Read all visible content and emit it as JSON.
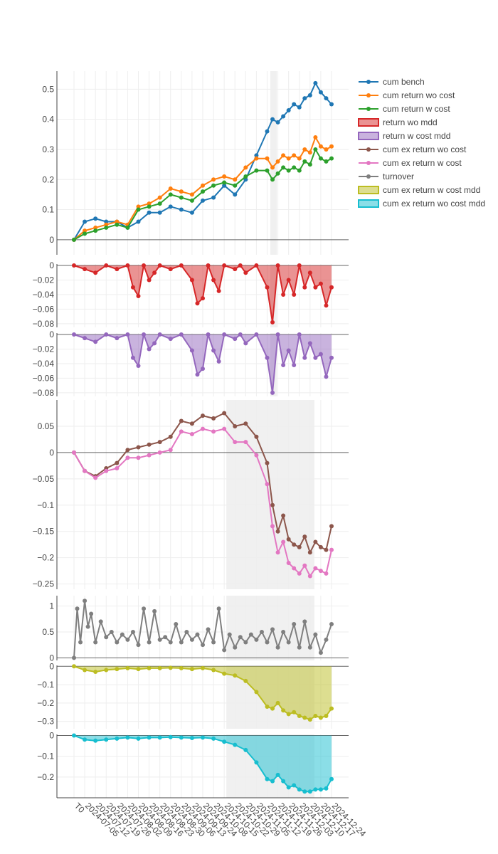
{
  "chart_data": {
    "type": "line",
    "x_categories": [
      "T0",
      "2024-07-05",
      "2024-07-12",
      "2024-07-19",
      "2024-07-26",
      "2024-08-02",
      "2024-08-09",
      "2024-08-16",
      "2024-08-23",
      "2024-08-30",
      "2024-09-06",
      "2024-09-13",
      "2024-09-24",
      "2024-10-08",
      "2024-10-15",
      "2024-10-22",
      "2024-10-29",
      "2024-11-05",
      "2024-11-12",
      "2024-11-19",
      "2024-11-26",
      "2024-12-03",
      "2024-12-10",
      "2024-12-17",
      "2024-12-24"
    ],
    "shaded_ranges": [
      {
        "panels": [
          "p1",
          "p2",
          "p3"
        ],
        "x": [
          18.3,
          18.9
        ]
      },
      {
        "panels": [
          "p4",
          "p5",
          "p6",
          "p7"
        ],
        "x": [
          14.2,
          22.4
        ]
      }
    ],
    "legend": {
      "placement": "right",
      "entries": [
        {
          "label": "cum bench",
          "color": "#1f77b4",
          "style": "line"
        },
        {
          "label": "cum return wo cost",
          "color": "#ff7f0e",
          "style": "line"
        },
        {
          "label": "cum return w cost",
          "color": "#2ca02c",
          "style": "line"
        },
        {
          "label": "return wo mdd",
          "color": "#d62728",
          "style": "fill"
        },
        {
          "label": "return w cost mdd",
          "color": "#9467bd",
          "style": "fill"
        },
        {
          "label": "cum ex return wo cost",
          "color": "#8c564b",
          "style": "line"
        },
        {
          "label": "cum ex return w cost",
          "color": "#e377c2",
          "style": "line"
        },
        {
          "label": "turnover",
          "color": "#7f7f7f",
          "style": "line"
        },
        {
          "label": "cum ex return w cost mdd",
          "color": "#bcbd22",
          "style": "fill"
        },
        {
          "label": "cum ex return wo cost mdd",
          "color": "#17becf",
          "style": "fill"
        }
      ]
    },
    "panels": [
      {
        "id": "p1",
        "ylim": [
          -0.05,
          0.56
        ],
        "yticks": [
          0,
          0.1,
          0.2,
          0.3,
          0.4,
          0.5
        ],
        "ytick_labels": [
          "0",
          "0.1",
          "0.2",
          "0.3",
          "0.4",
          "0.5"
        ],
        "series": [
          {
            "name": "cum bench",
            "color": "#1f77b4",
            "x": [
              0,
              1,
              2,
              3,
              4,
              5,
              6,
              7,
              8,
              9,
              10,
              11,
              12,
              13,
              14,
              15,
              16,
              17,
              18,
              18.5,
              19,
              19.5,
              20,
              20.5,
              21,
              21.5,
              22,
              22.5,
              23,
              23.5,
              24
            ],
            "values": [
              0,
              0.06,
              0.07,
              0.06,
              0.06,
              0.04,
              0.06,
              0.09,
              0.09,
              0.11,
              0.1,
              0.09,
              0.13,
              0.14,
              0.18,
              0.15,
              0.2,
              0.28,
              0.36,
              0.4,
              0.39,
              0.41,
              0.43,
              0.45,
              0.44,
              0.47,
              0.48,
              0.52,
              0.49,
              0.47,
              0.45
            ]
          },
          {
            "name": "cum return wo cost",
            "color": "#ff7f0e",
            "x": [
              0,
              1,
              2,
              3,
              4,
              5,
              6,
              7,
              8,
              9,
              10,
              11,
              12,
              13,
              14,
              15,
              16,
              17,
              18,
              18.5,
              19,
              19.5,
              20,
              20.5,
              21,
              21.5,
              22,
              22.5,
              23,
              23.5,
              24
            ],
            "values": [
              0,
              0.03,
              0.04,
              0.05,
              0.06,
              0.05,
              0.11,
              0.12,
              0.14,
              0.17,
              0.16,
              0.15,
              0.18,
              0.2,
              0.21,
              0.2,
              0.24,
              0.27,
              0.27,
              0.24,
              0.26,
              0.28,
              0.27,
              0.28,
              0.27,
              0.3,
              0.29,
              0.34,
              0.31,
              0.3,
              0.31
            ]
          },
          {
            "name": "cum return w cost",
            "color": "#2ca02c",
            "x": [
              0,
              1,
              2,
              3,
              4,
              5,
              6,
              7,
              8,
              9,
              10,
              11,
              12,
              13,
              14,
              15,
              16,
              17,
              18,
              18.5,
              19,
              19.5,
              20,
              20.5,
              21,
              21.5,
              22,
              22.5,
              23,
              23.5,
              24
            ],
            "values": [
              0,
              0.02,
              0.03,
              0.04,
              0.05,
              0.04,
              0.1,
              0.11,
              0.12,
              0.15,
              0.14,
              0.13,
              0.16,
              0.18,
              0.19,
              0.18,
              0.21,
              0.23,
              0.23,
              0.2,
              0.22,
              0.24,
              0.23,
              0.24,
              0.23,
              0.26,
              0.25,
              0.3,
              0.27,
              0.26,
              0.27
            ]
          }
        ]
      },
      {
        "id": "p2",
        "ylim": [
          -0.085,
          0.002
        ],
        "yticks": [
          0,
          -0.02,
          -0.04,
          -0.06,
          -0.08
        ],
        "ytick_labels": [
          "0",
          "−0.02",
          "−0.04",
          "−0.06",
          "−0.08"
        ],
        "series": [
          {
            "name": "return wo mdd",
            "color": "#d62728",
            "fill": true,
            "x": [
              0,
              1,
              2,
              3,
              4,
              5,
              5.5,
              6,
              6.5,
              7,
              7.5,
              8,
              9,
              10,
              11,
              11.5,
              12,
              12.5,
              13,
              13.5,
              14,
              15,
              15.5,
              16,
              17,
              18,
              18.5,
              19,
              19.5,
              20,
              20.5,
              21,
              21.5,
              22,
              22.5,
              23,
              23.5,
              24
            ],
            "values": [
              0,
              -0.005,
              -0.01,
              0,
              -0.005,
              0,
              -0.03,
              -0.042,
              0,
              -0.02,
              -0.01,
              0,
              -0.005,
              0,
              -0.02,
              -0.052,
              -0.045,
              0,
              -0.02,
              -0.035,
              0,
              -0.005,
              0,
              -0.01,
              0,
              -0.03,
              -0.078,
              0,
              -0.04,
              -0.02,
              -0.04,
              0,
              -0.03,
              -0.01,
              -0.03,
              -0.025,
              -0.055,
              -0.03
            ]
          }
        ]
      },
      {
        "id": "p3",
        "ylim": [
          -0.085,
          0.002
        ],
        "yticks": [
          0,
          -0.02,
          -0.04,
          -0.06,
          -0.08
        ],
        "ytick_labels": [
          "0",
          "−0.02",
          "−0.04",
          "−0.06",
          "−0.08"
        ],
        "series": [
          {
            "name": "return w cost mdd",
            "color": "#9467bd",
            "fill": true,
            "x": [
              0,
              1,
              2,
              3,
              4,
              5,
              5.5,
              6,
              6.5,
              7,
              7.5,
              8,
              9,
              10,
              11,
              11.5,
              12,
              12.5,
              13,
              13.5,
              14,
              15,
              15.5,
              16,
              17,
              18,
              18.5,
              19,
              19.5,
              20,
              20.5,
              21,
              21.5,
              22,
              22.5,
              23,
              23.5,
              24
            ],
            "values": [
              0,
              -0.005,
              -0.01,
              0,
              -0.005,
              0,
              -0.032,
              -0.043,
              0,
              -0.02,
              -0.012,
              0,
              -0.006,
              0,
              -0.022,
              -0.055,
              -0.047,
              0,
              -0.022,
              -0.037,
              0,
              -0.006,
              0,
              -0.012,
              0,
              -0.032,
              -0.08,
              0,
              -0.042,
              -0.022,
              -0.042,
              0,
              -0.032,
              -0.012,
              -0.032,
              -0.027,
              -0.058,
              -0.032
            ]
          }
        ]
      },
      {
        "id": "p4",
        "ylim": [
          -0.26,
          0.1
        ],
        "yticks": [
          0.05,
          0,
          -0.05,
          -0.1,
          -0.15,
          -0.2,
          -0.25
        ],
        "ytick_labels": [
          "0.05",
          "0",
          "−0.05",
          "−0.1",
          "−0.15",
          "−0.2",
          "−0.25"
        ],
        "series": [
          {
            "name": "cum ex return wo cost",
            "color": "#8c564b",
            "x": [
              0,
              1,
              2,
              3,
              4,
              5,
              6,
              7,
              8,
              9,
              10,
              11,
              12,
              13,
              14,
              15,
              16,
              17,
              18,
              18.5,
              19,
              19.5,
              20,
              20.5,
              21,
              21.5,
              22,
              22.5,
              23,
              23.5,
              24
            ],
            "values": [
              0,
              -0.035,
              -0.045,
              -0.03,
              -0.02,
              0.005,
              0.01,
              0.015,
              0.02,
              0.03,
              0.06,
              0.055,
              0.07,
              0.065,
              0.075,
              0.05,
              0.055,
              0.03,
              -0.02,
              -0.1,
              -0.15,
              -0.12,
              -0.165,
              -0.175,
              -0.18,
              -0.16,
              -0.19,
              -0.17,
              -0.18,
              -0.185,
              -0.14
            ]
          },
          {
            "name": "cum ex return w cost",
            "color": "#e377c2",
            "x": [
              0,
              1,
              2,
              3,
              4,
              5,
              6,
              7,
              8,
              9,
              10,
              11,
              12,
              13,
              14,
              15,
              16,
              17,
              18,
              18.5,
              19,
              19.5,
              20,
              20.5,
              21,
              21.5,
              22,
              22.5,
              23,
              23.5,
              24
            ],
            "values": [
              0,
              -0.035,
              -0.048,
              -0.035,
              -0.03,
              -0.01,
              -0.01,
              -0.005,
              0,
              0.005,
              0.04,
              0.035,
              0.045,
              0.04,
              0.045,
              0.02,
              0.02,
              -0.005,
              -0.06,
              -0.14,
              -0.19,
              -0.17,
              -0.21,
              -0.22,
              -0.23,
              -0.215,
              -0.235,
              -0.22,
              -0.225,
              -0.23,
              -0.185
            ]
          }
        ]
      },
      {
        "id": "p5",
        "ylim": [
          -0.05,
          1.2
        ],
        "yticks": [
          0,
          0.5,
          1
        ],
        "ytick_labels": [
          "0",
          "0.5",
          "1"
        ],
        "series": [
          {
            "name": "turnover",
            "color": "#7f7f7f",
            "x": [
              0,
              0.3,
              0.6,
              1,
              1.3,
              1.6,
              2,
              2.5,
              3,
              3.5,
              4,
              4.5,
              5,
              5.5,
              6,
              6.5,
              7,
              7.5,
              8,
              8.5,
              9,
              9.5,
              10,
              10.5,
              11,
              11.5,
              12,
              12.5,
              13,
              13.5,
              14,
              14.5,
              15,
              15.5,
              16,
              16.5,
              17,
              17.5,
              18,
              18.5,
              19,
              19.5,
              20,
              20.5,
              21,
              21.5,
              22,
              22.5,
              23,
              23.5,
              24
            ],
            "values": [
              0,
              0.95,
              0.3,
              1.1,
              0.6,
              0.85,
              0.3,
              0.7,
              0.4,
              0.5,
              0.3,
              0.45,
              0.35,
              0.5,
              0.25,
              0.95,
              0.3,
              0.9,
              0.35,
              0.4,
              0.3,
              0.65,
              0.3,
              0.5,
              0.35,
              0.45,
              0.25,
              0.55,
              0.3,
              0.95,
              0.15,
              0.45,
              0.2,
              0.4,
              0.3,
              0.45,
              0.35,
              0.5,
              0.3,
              0.55,
              0.2,
              0.5,
              0.3,
              0.65,
              0.2,
              0.7,
              0.2,
              0.45,
              0.1,
              0.35,
              0.65
            ]
          }
        ]
      },
      {
        "id": "p6",
        "ylim": [
          -0.34,
          0.005
        ],
        "yticks": [
          0,
          -0.1,
          -0.2,
          -0.3
        ],
        "ytick_labels": [
          "0",
          "−0.1",
          "−0.2",
          "−0.3"
        ],
        "series": [
          {
            "name": "cum ex return w cost mdd",
            "color": "#bcbd22",
            "fill": true,
            "x": [
              0,
              1,
              2,
              3,
              4,
              5,
              6,
              7,
              8,
              9,
              10,
              11,
              12,
              13,
              14,
              15,
              16,
              17,
              18,
              18.5,
              19,
              19.5,
              20,
              20.5,
              21,
              21.5,
              22,
              22.5,
              23,
              23.5,
              24
            ],
            "values": [
              0,
              -0.02,
              -0.03,
              -0.02,
              -0.015,
              -0.01,
              -0.015,
              -0.01,
              -0.01,
              -0.008,
              -0.01,
              -0.015,
              -0.01,
              -0.02,
              -0.04,
              -0.05,
              -0.08,
              -0.14,
              -0.22,
              -0.23,
              -0.2,
              -0.24,
              -0.26,
              -0.25,
              -0.27,
              -0.28,
              -0.29,
              -0.27,
              -0.28,
              -0.27,
              -0.23
            ]
          }
        ]
      },
      {
        "id": "p7",
        "ylim": [
          -0.3,
          0.005
        ],
        "yticks": [
          0,
          -0.1,
          -0.2
        ],
        "ytick_labels": [
          "0",
          "−0.1",
          "−0.2"
        ],
        "series": [
          {
            "name": "cum ex return wo cost mdd",
            "color": "#17becf",
            "fill": true,
            "x": [
              0,
              1,
              2,
              3,
              4,
              5,
              6,
              7,
              8,
              9,
              10,
              11,
              12,
              13,
              14,
              15,
              16,
              17,
              18,
              18.5,
              19,
              19.5,
              20,
              20.5,
              21,
              21.5,
              22,
              22.5,
              23,
              23.5,
              24
            ],
            "values": [
              0,
              -0.02,
              -0.025,
              -0.02,
              -0.015,
              -0.01,
              -0.015,
              -0.01,
              -0.01,
              -0.008,
              -0.01,
              -0.012,
              -0.01,
              -0.015,
              -0.03,
              -0.045,
              -0.07,
              -0.13,
              -0.21,
              -0.22,
              -0.19,
              -0.22,
              -0.25,
              -0.24,
              -0.26,
              -0.27,
              -0.27,
              -0.26,
              -0.26,
              -0.255,
              -0.21
            ]
          }
        ]
      }
    ]
  }
}
